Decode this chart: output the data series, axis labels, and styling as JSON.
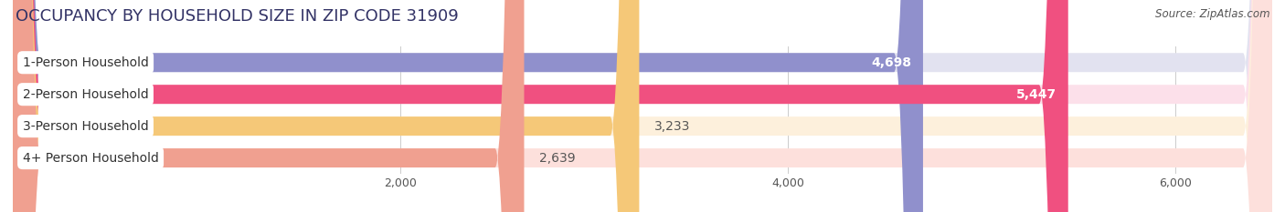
{
  "title": "OCCUPANCY BY HOUSEHOLD SIZE IN ZIP CODE 31909",
  "source": "Source: ZipAtlas.com",
  "categories": [
    "1-Person Household",
    "2-Person Household",
    "3-Person Household",
    "4+ Person Household"
  ],
  "values": [
    4698,
    5447,
    3233,
    2639
  ],
  "bar_colors": [
    "#9090cc",
    "#f05080",
    "#f5c878",
    "#f0a090"
  ],
  "bar_bg_colors": [
    "#e2e2f0",
    "#fce0ea",
    "#fdf0dc",
    "#fde0dc"
  ],
  "label_colors": [
    "white",
    "white",
    "#555555",
    "#555555"
  ],
  "xlim": [
    0,
    6500
  ],
  "xticks": [
    2000,
    4000,
    6000
  ],
  "background_color": "#ffffff",
  "title_fontsize": 13,
  "label_fontsize": 10,
  "value_fontsize": 10
}
